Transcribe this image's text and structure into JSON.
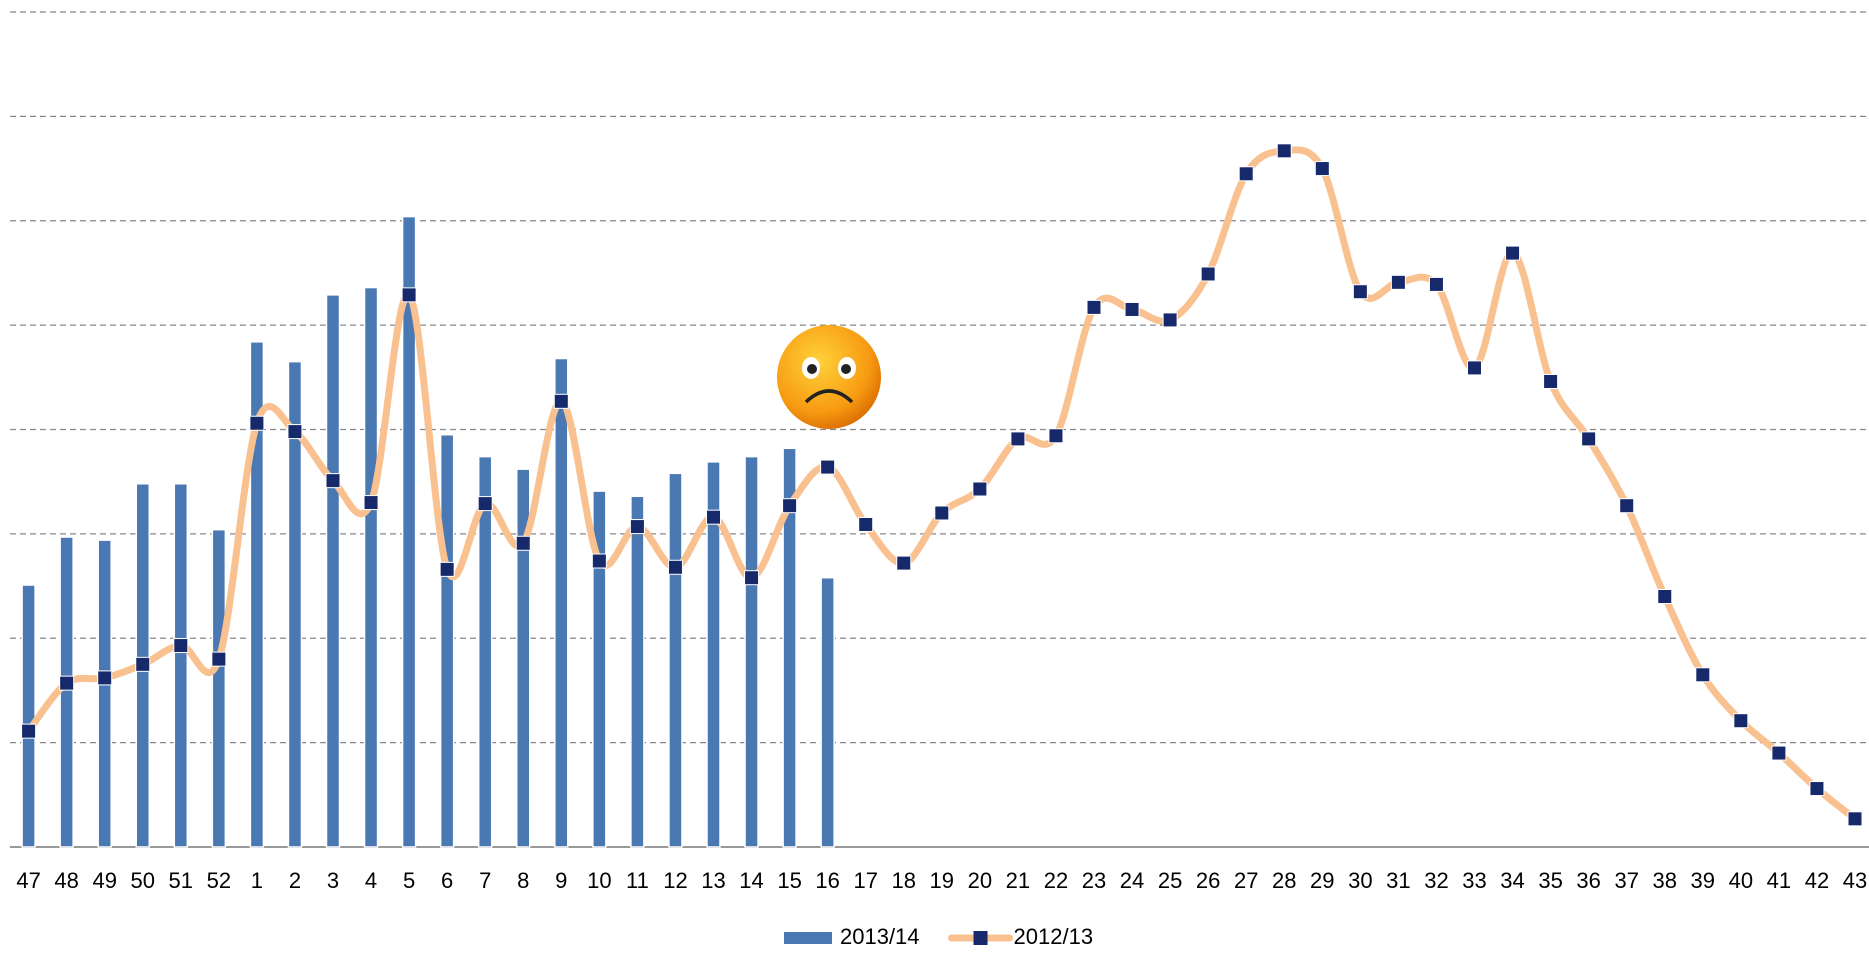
{
  "chart_data": {
    "type": "bar_line",
    "categories": [
      "47",
      "48",
      "49",
      "50",
      "51",
      "52",
      "1",
      "2",
      "3",
      "4",
      "5",
      "6",
      "7",
      "8",
      "9",
      "10",
      "11",
      "12",
      "13",
      "14",
      "15",
      "16",
      "17",
      "18",
      "19",
      "20",
      "21",
      "22",
      "23",
      "24",
      "25",
      "26",
      "27",
      "28",
      "29",
      "30",
      "31",
      "32",
      "33",
      "34",
      "35",
      "36",
      "37",
      "38",
      "39",
      "40",
      "41",
      "42",
      "43"
    ],
    "series": [
      {
        "name": "2013/14",
        "type": "bar",
        "color": "#4a78b2",
        "values": [
          2.51,
          2.97,
          2.94,
          3.48,
          3.48,
          3.04,
          4.84,
          4.65,
          5.29,
          5.36,
          6.04,
          3.95,
          3.74,
          3.62,
          4.68,
          3.41,
          3.36,
          3.58,
          3.69,
          3.74,
          3.82,
          2.58,
          null,
          null,
          null,
          null,
          null,
          null,
          null,
          null,
          null,
          null,
          null,
          null,
          null,
          null,
          null,
          null,
          null,
          null,
          null,
          null,
          null,
          null,
          null,
          null,
          null,
          null,
          null
        ]
      },
      {
        "name": "2012/13",
        "type": "line",
        "color": "#f9c190",
        "marker_color": "#16296a",
        "values": [
          1.11,
          1.57,
          1.62,
          1.75,
          1.93,
          1.8,
          4.06,
          3.98,
          3.51,
          3.3,
          5.29,
          2.66,
          3.29,
          2.91,
          4.27,
          2.74,
          3.07,
          2.68,
          3.16,
          2.58,
          3.27,
          3.64,
          3.09,
          2.72,
          3.2,
          3.43,
          3.91,
          3.94,
          5.17,
          5.15,
          5.05,
          5.49,
          6.45,
          6.67,
          6.5,
          5.32,
          5.41,
          5.39,
          4.59,
          5.69,
          4.46,
          3.91,
          3.27,
          2.4,
          1.65,
          1.21,
          0.9,
          0.56,
          0.27
        ]
      }
    ],
    "ylim": [
      0,
      8
    ],
    "yticks": [
      0,
      1,
      2,
      3,
      4,
      5,
      6,
      7,
      8
    ],
    "grid": true,
    "legend": "bottom"
  }
}
